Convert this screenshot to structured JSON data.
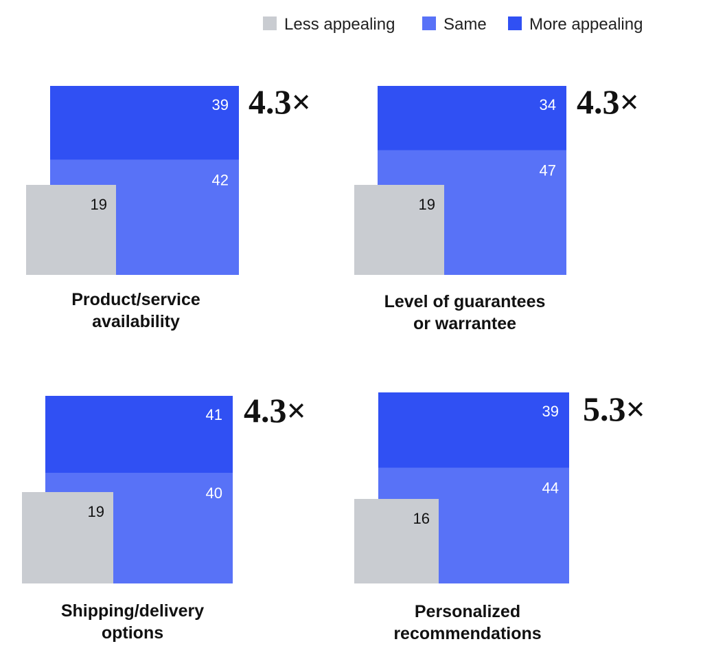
{
  "chart_data": {
    "type": "area",
    "legend_position": "top-right",
    "series": [
      {
        "name": "Less appealing",
        "color": "#c9ccd1"
      },
      {
        "name": "Same",
        "color": "#5872f7"
      },
      {
        "name": "More appealing",
        "color": "#3050f3"
      }
    ],
    "panels": [
      {
        "label_lines": [
          "Product/service",
          "availability"
        ],
        "less": "19",
        "same": "42",
        "more": "39",
        "multiplier": "4.3×"
      },
      {
        "label_lines": [
          "Level of guarantees",
          "or warrantee"
        ],
        "less": "19",
        "same": "47",
        "more": "34",
        "multiplier": "4.3×"
      },
      {
        "label_lines": [
          "Shipping/delivery",
          "options"
        ],
        "less": "19",
        "same": "40",
        "more": "41",
        "multiplier": "4.3×"
      },
      {
        "label_lines": [
          "Personalized",
          "recommendations"
        ],
        "less": "16",
        "same": "44",
        "more": "39",
        "multiplier": "5.3×"
      }
    ]
  }
}
